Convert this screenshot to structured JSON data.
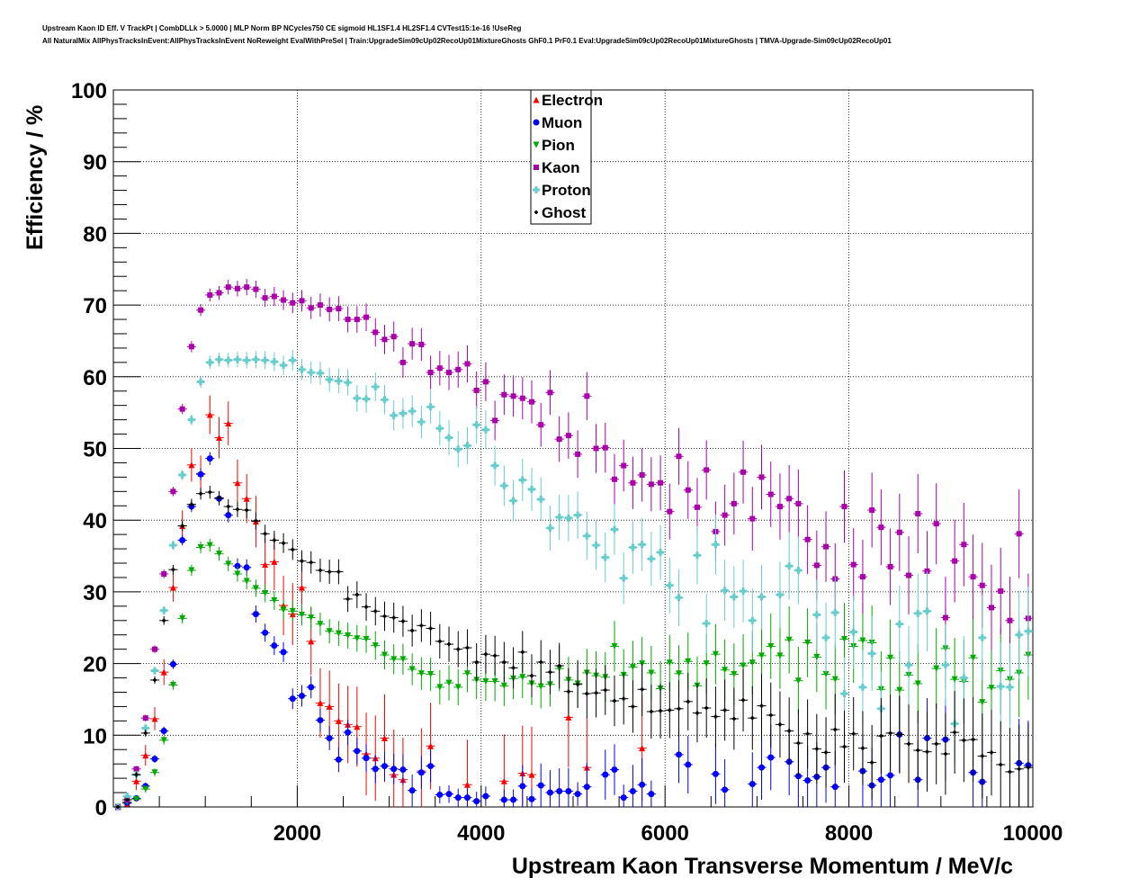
{
  "title_line1": "Upstream Kaon ID Eff. V TrackPt | CombDLLk > 5.0000 | MLP Norm BP NCycles750 CE sigmoid HL1SF1.4 HL2SF1.4 CVTest15:1e-16 !UseReg",
  "title_line2": "All NaturalMix AllPhysTracksInEvent:AllPhysTracksInEvent NoReweight EvalWithPreSel | Train:UpgradeSim09cUp02RecoUp01MixtureGhosts GhF0.1 PrF0.1 Eval:UpgradeSim09cUp02RecoUp01MixtureGhosts | TMVA-Upgrade-Sim09cUp02RecoUp01",
  "chart_data": {
    "type": "scatter",
    "xlabel": "Upstream Kaon Transverse Momentum / MeV/c",
    "ylabel": "Efficiency / %",
    "xlim": [
      0,
      10000
    ],
    "ylim": [
      0,
      100
    ],
    "xticks": [
      "2000",
      "4000",
      "6000",
      "8000",
      "10000"
    ],
    "yticks": [
      "0",
      "10",
      "20",
      "30",
      "40",
      "50",
      "60",
      "70",
      "80",
      "90",
      "100"
    ],
    "grid": true,
    "legend_position": "top-center",
    "x_start": 50,
    "x_step": 100,
    "series": [
      {
        "name": "Electron",
        "color": "#ff0000",
        "marker": "triangle-up",
        "values": [
          0,
          0.5,
          3.6,
          7.2,
          12.3,
          18.8,
          30.6,
          39.2,
          47.7,
          46.5,
          54.7,
          51.5,
          53.5,
          45.2,
          43,
          39.8,
          33.8,
          34.2,
          28.1,
          26.9,
          30.6,
          23.1,
          14.5,
          14,
          12,
          11.5,
          11.2,
          7.4,
          6.8,
          9.6,
          4.5,
          3.8,
          null,
          5,
          8.5,
          null,
          null,
          null,
          3.1,
          null,
          null,
          null,
          3.6,
          null,
          4.7,
          4.5,
          null,
          null,
          null,
          12.5,
          null,
          5.5,
          null,
          null,
          null,
          null,
          null,
          8.2
        ]
      },
      {
        "name": "Muon",
        "color": "#0000ff",
        "marker": "circle",
        "values": [
          0,
          0.6,
          1.2,
          2.9,
          6.7,
          10.6,
          19.9,
          37.2,
          41.9,
          46.4,
          48.6,
          43,
          40.7,
          33.6,
          33.4,
          26.9,
          24.3,
          22.5,
          21.6,
          15.1,
          15.5,
          16.7,
          12.1,
          9.6,
          6.6,
          10.4,
          7.8,
          6.8,
          5.3,
          5.7,
          5.3,
          5.2,
          2.3,
          4.8,
          5.7,
          1.7,
          1.8,
          1.3,
          1.3,
          0.8,
          1.5,
          null,
          1,
          1,
          2.9,
          1.1,
          3,
          2,
          2.2,
          2.2,
          1.8,
          2.8,
          null,
          4.5,
          5.2,
          1.3,
          2.2,
          3.1,
          1.8,
          null,
          null,
          7.3,
          5.9,
          null,
          null,
          4.6,
          2.4,
          null,
          null,
          3.2,
          5.5,
          6.9,
          null,
          6.3,
          4.3,
          3.7,
          4.2,
          5.5,
          2.8,
          null,
          null,
          5,
          3,
          3.8,
          4.4,
          10.1,
          null,
          3.8,
          9.6,
          null,
          9.4,
          null,
          null,
          4.8,
          3.5,
          null,
          null,
          null,
          6.1,
          5.8
        ]
      },
      {
        "name": "Pion",
        "color": "#00aa00",
        "marker": "triangle-down",
        "values": [
          0,
          0.7,
          1.1,
          2.5,
          4.8,
          9.3,
          17,
          26.3,
          33,
          36.2,
          36.5,
          35.3,
          33.9,
          32.5,
          31.5,
          30.5,
          29.8,
          28.8,
          27.5,
          27.3,
          26.8,
          26.4,
          25.5,
          24.5,
          24.2,
          23.9,
          23.5,
          23.4,
          22.5,
          21.2,
          20.6,
          20.6,
          19.2,
          18.6,
          18.5,
          16.7,
          17.3,
          16.7,
          18.6,
          17.7,
          17.5,
          17.5,
          16.9,
          17.9,
          18.1,
          17.2,
          16.8,
          17.1,
          19.3,
          17.7,
          17.2,
          18.7,
          18.3,
          18.1,
          22.4,
          18.4,
          19.5,
          20,
          18.7,
          16.5,
          20.1,
          18.6,
          20.3,
          16.9,
          20,
          21.3,
          19.1,
          18.5,
          19.7,
          20.1,
          21.1,
          22.4,
          21.1,
          23.3,
          17.6,
          22.9,
          20.9,
          18.5,
          17.8,
          23.4,
          22.4,
          23.2,
          22.9,
          16.4,
          20.8,
          16.3,
          18.4,
          17.2,
          null,
          19.3,
          22.1,
          17.8,
          17.5,
          20.8,
          14.6,
          16.6,
          19,
          17.8,
          18.7,
          21.2
        ]
      },
      {
        "name": "Kaon",
        "color": "#aa00aa",
        "marker": "square",
        "values": [
          0,
          1,
          5.3,
          12.4,
          22,
          32.5,
          44,
          55.5,
          64.2,
          69.3,
          71.4,
          71.7,
          72.5,
          72.3,
          72.5,
          72.2,
          71,
          71.2,
          70.7,
          70.3,
          70.6,
          69.6,
          70,
          69.4,
          69.5,
          68,
          68,
          68.3,
          66.2,
          65.2,
          65.6,
          62,
          64.6,
          64.5,
          60.6,
          61.2,
          60.6,
          61,
          61.8,
          58.1,
          59.3,
          53.9,
          57.5,
          57.3,
          57,
          56.5,
          53.3,
          57.8,
          51.3,
          51.8,
          49.2,
          57.3,
          50,
          50.1,
          45.7,
          47.6,
          45.2,
          46.3,
          45,
          45.2,
          41.2,
          48.9,
          44.2,
          41.8,
          47,
          38.4,
          40.7,
          42.3,
          46.7,
          40.2,
          46,
          43.6,
          41.9,
          43,
          42.3,
          37.3,
          33.7,
          36.3,
          31.8,
          41.9,
          33.8,
          32.1,
          41.4,
          39,
          33.5,
          38.3,
          32.3,
          40.9,
          32.9,
          39.5,
          26.4,
          34.3,
          36.6,
          32.1,
          30.9,
          27.8,
          30.1,
          26,
          38.1,
          26.3
        ]
      },
      {
        "name": "Proton",
        "color": "#66cccc",
        "marker": "cross",
        "values": [
          0,
          1.5,
          4.5,
          11,
          19,
          27.4,
          36.5,
          46.3,
          54,
          59.3,
          62,
          62.4,
          62.3,
          62.4,
          62.3,
          62.4,
          62.3,
          62.1,
          61.6,
          62.3,
          61,
          60.6,
          60.5,
          59.6,
          59.4,
          59.2,
          57,
          56.9,
          58.6,
          56.8,
          54.6,
          54.9,
          55.2,
          53.7,
          55.8,
          52.8,
          51.5,
          49.9,
          50.4,
          53.3,
          52.6,
          47.6,
          44.8,
          42.7,
          45.6,
          44.3,
          42.9,
          38.9,
          40.4,
          40.3,
          40.7,
          37.8,
          36.5,
          34.8,
          38.7,
          31.9,
          36.2,
          36.6,
          34.6,
          35.5,
          30.9,
          29.2,
          null,
          35.1,
          25.6,
          36.6,
          30.2,
          29.3,
          30.1,
          26,
          29.3,
          null,
          29.6,
          33.6,
          33,
          null,
          26.8,
          23.6,
          27.1,
          15.8,
          24.4,
          16.7,
          21.4,
          13.7,
          null,
          25.5,
          19.8,
          27,
          27.3,
          null,
          19.8,
          11.6,
          18,
          null,
          23.6,
          null,
          16.8,
          16.7,
          24,
          24.5
        ]
      },
      {
        "name": "Ghost",
        "color": "#000000",
        "marker": "plus",
        "values": [
          0,
          1,
          4.5,
          10.3,
          17.7,
          26,
          33.1,
          39.2,
          42.2,
          43.7,
          43.9,
          43.1,
          41.9,
          41.5,
          41.4,
          39.9,
          38.1,
          37.2,
          36.8,
          35.9,
          34.3,
          34.1,
          33,
          32.8,
          32.8,
          29,
          29.6,
          27.9,
          27.3,
          26.6,
          26.4,
          25.9,
          24.6,
          25.3,
          24.9,
          23.1,
          22.7,
          22,
          22.2,
          20.2,
          21.3,
          21.1,
          20.2,
          19.4,
          21.6,
          18.3,
          20.2,
          18.8,
          19.7,
          16.1,
          17.1,
          15.8,
          15.9,
          16.3,
          14.8,
          15.1,
          14,
          16.4,
          13.3,
          13.4,
          13.5,
          13.7,
          14.7,
          13.1,
          13.8,
          12.6,
          13.5,
          12.3,
          14.9,
          12.4,
          14.1,
          12.8,
          11.5,
          10.6,
          8.9,
          10.2,
          8.1,
          7.6,
          10.8,
          8.4,
          10.2,
          8.2,
          6.2,
          9.9,
          10.3,
          10.1,
          8.8,
          7.9,
          7.7,
          8.8,
          7.4,
          10.4,
          9.3,
          9.4,
          7.1,
          7.6,
          5.9,
          4.9,
          5.3,
          5.5
        ]
      }
    ]
  }
}
